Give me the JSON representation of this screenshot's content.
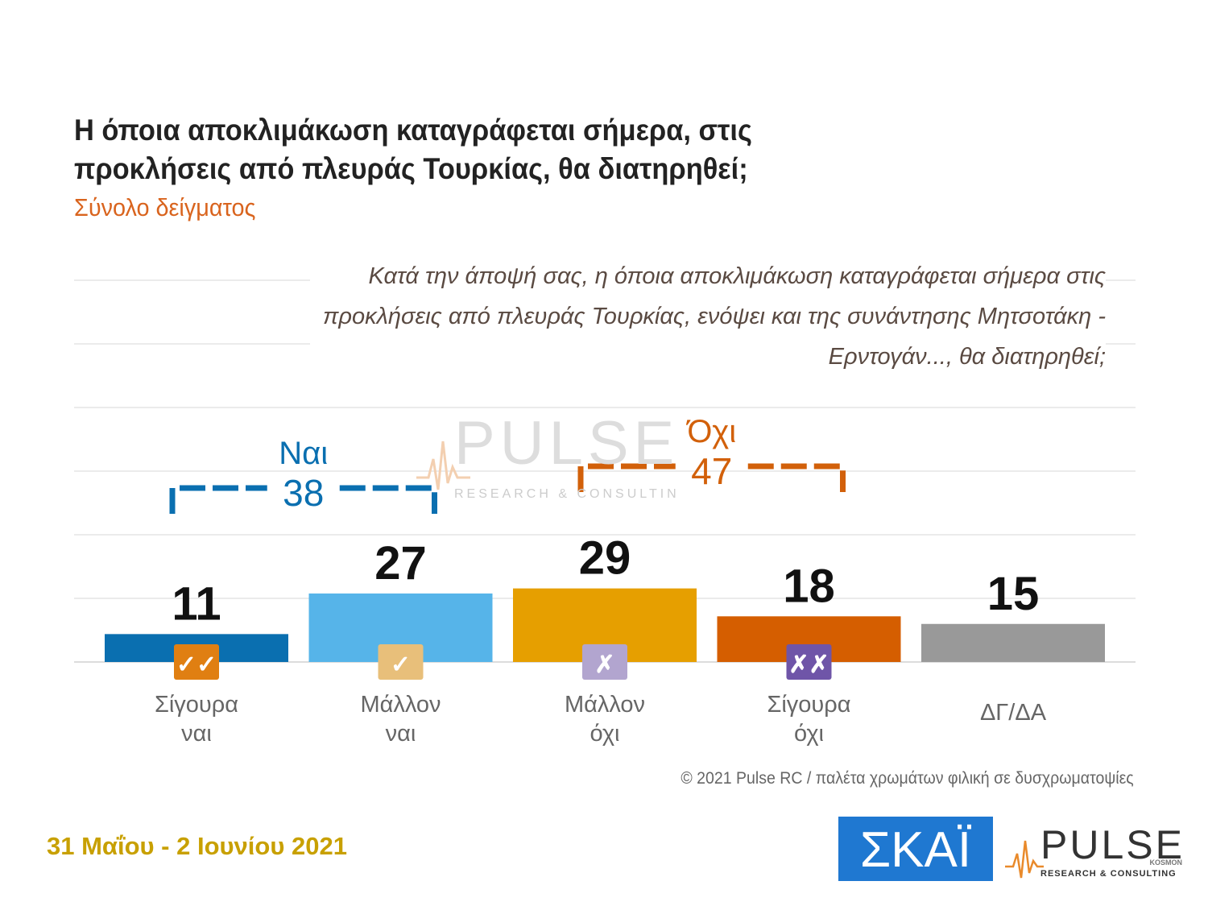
{
  "title": "Η όποια αποκλιμάκωση καταγράφεται σήμερα, στις προκλήσεις από πλευράς Τουρκίας, θα διατηρηθεί;",
  "subtitle": "Σύνολο δείγματος",
  "question": "Κατά την άποψή σας, η όποια αποκλιμάκωση καταγράφεται σήμερα στις προκλήσεις από πλευράς Τουρκίας, ενόψει και της συνάντησης Μητσοτάκη - Ερντογάν..., θα διατηρηθεί;",
  "colors": {
    "yes_group": "#0a6fb0",
    "no_group": "#d2600a",
    "title": "#222222",
    "subtitle": "#d9641e",
    "date": "#c8a000"
  },
  "chart_data": {
    "type": "bar",
    "categories": [
      [
        "Σίγουρα",
        "ναι"
      ],
      [
        "Μάλλον",
        "ναι"
      ],
      [
        "Μάλλον",
        "όχι"
      ],
      [
        "Σίγουρα",
        "όχι"
      ],
      [
        "ΔΓ/ΔΑ"
      ]
    ],
    "values": [
      11,
      27,
      29,
      18,
      15
    ],
    "bar_colors": [
      "#0a6fb0",
      "#56b4e9",
      "#e69f00",
      "#d55e00",
      "#999999"
    ],
    "icons": [
      {
        "name": "double-check-icon",
        "glyph": "✓✓",
        "color": "#e07f12"
      },
      {
        "name": "check-icon",
        "glyph": "✓",
        "color": "#e8bf7a"
      },
      {
        "name": "cross-icon",
        "glyph": "✗",
        "color": "#b2a5cf"
      },
      {
        "name": "double-cross-icon",
        "glyph": "✗✗",
        "color": "#6f55a8"
      },
      null
    ],
    "groups": [
      {
        "label": "Ναι",
        "total": "38",
        "from": 0,
        "to": 1,
        "color": "#0a6fb0"
      },
      {
        "label": "Όχι",
        "total": "47",
        "from": 2,
        "to": 3,
        "color": "#d2600a"
      }
    ],
    "ylim": [
      0,
      100
    ],
    "grid": true
  },
  "footer": {
    "credit": "© 2021 Pulse RC  /  παλέτα χρωμάτων φιλική σε δυσχρωματοψίες",
    "date": "31 Μαΐου - 2 Ιουνίου 2021"
  },
  "logos": {
    "skai": "ΣΚΑΪ",
    "pulse": "PULSE",
    "pulse_sub": "RESEARCH & CONSULTING",
    "pulse_kosmon": "KOSMON"
  }
}
